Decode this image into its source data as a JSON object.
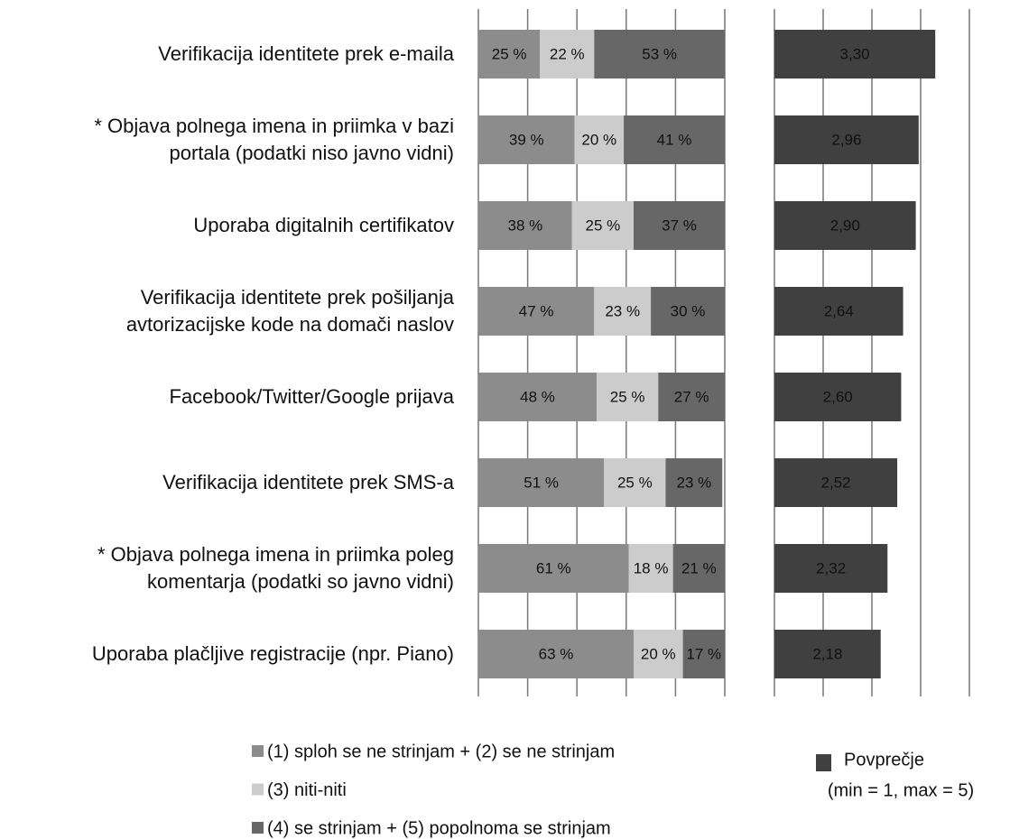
{
  "chart_data": [
    {
      "type": "stacked_barh",
      "categories": [
        "Verifikacija identitete prek e-maila",
        "* Objava polnega imena in priimka v bazi\nportala (podatki niso javno vidni)",
        "Uporaba digitalnih certifikatov",
        "Verifikacija identitete prek pošiljanja\navtorizacijske kode na domači naslov",
        "Facebook/Twitter/Google prijava",
        "Verifikacija identitete prek  SMS-a",
        "* Objava polnega imena in priimka poleg\nkomentarja (podatki so javno vidni)",
        "Uporaba plačljive registracije (npr. Piano)"
      ],
      "series": [
        {
          "name": "(1) sploh se ne strinjam + (2) se ne strinjam",
          "color": "#8c8c8c",
          "values": [
            25,
            39,
            38,
            47,
            48,
            51,
            61,
            63
          ],
          "value_labels": [
            "25 %",
            "39 %",
            "38 %",
            "47 %",
            "48 %",
            "51 %",
            "61 %",
            "63 %"
          ]
        },
        {
          "name": "(3) niti-niti",
          "color": "#cccccc",
          "values": [
            22,
            20,
            25,
            23,
            25,
            25,
            18,
            20
          ],
          "value_labels": [
            "22 %",
            "20 %",
            "25 %",
            "23 %",
            "25 %",
            "25 %",
            "18 %",
            "20 %"
          ]
        },
        {
          "name": "(4) se strinjam + (5) popolnoma se strinjam",
          "color": "#676767",
          "values": [
            53,
            41,
            37,
            30,
            27,
            23,
            21,
            17
          ],
          "value_labels": [
            "53 %",
            "41 %",
            "37 %",
            "30 %",
            "27 %",
            "23 %",
            "21 %",
            "17 %"
          ]
        }
      ],
      "xlim": [
        0,
        100
      ],
      "xticks": [
        0,
        20,
        40,
        60,
        80,
        100
      ],
      "grid": true
    },
    {
      "type": "barh",
      "series": [
        {
          "name": "Povprečje",
          "color": "#404040",
          "values": [
            3.3,
            2.96,
            2.9,
            2.64,
            2.6,
            2.52,
            2.32,
            2.18
          ],
          "value_labels": [
            "3,30",
            "2,96",
            "2,90",
            "2,64",
            "2,60",
            "2,52",
            "2,32",
            "2,18"
          ]
        }
      ],
      "legend_note": "(min = 1, max = 5)",
      "xlim": [
        0,
        4
      ],
      "xticks": [
        0,
        1,
        2,
        3,
        4
      ],
      "grid": true
    }
  ]
}
